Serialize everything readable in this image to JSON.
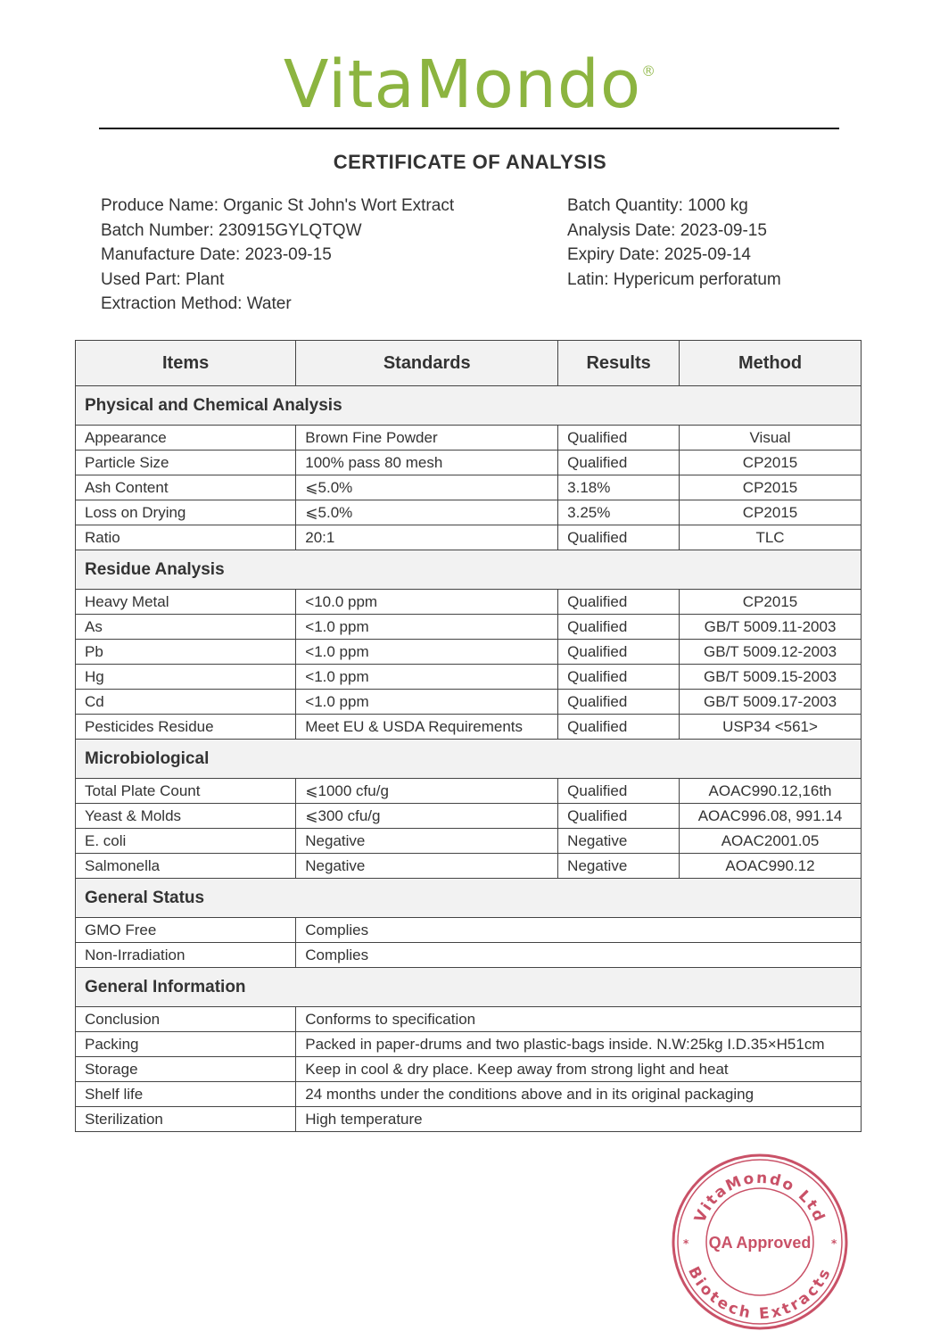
{
  "brand": {
    "name": "VitaMondo",
    "mark": "®",
    "color": "#8cb440"
  },
  "title": "CERTIFICATE OF ANALYSIS",
  "info_left": [
    "Produce Name: Organic St John's Wort Extract",
    "Batch Number: 230915GYLQTQW",
    "Manufacture Date: 2023-09-15",
    "Used Part: Plant",
    "Extraction Method: Water"
  ],
  "info_right": [
    "Batch Quantity: 1000 kg",
    "Analysis Date: 2023-09-15",
    "Expiry Date: 2025-09-14",
    "Latin: Hypericum perforatum"
  ],
  "table": {
    "headers": [
      "Items",
      "Standards",
      "Results",
      "Method"
    ],
    "sections": [
      {
        "title": "Physical and Chemical Analysis",
        "rows": [
          [
            "Appearance",
            "Brown Fine Powder",
            "Qualified",
            "Visual"
          ],
          [
            "Particle Size",
            "100% pass 80 mesh",
            "Qualified",
            "CP2015"
          ],
          [
            "Ash Content",
            "⩽5.0%",
            "3.18%",
            "CP2015"
          ],
          [
            "Loss on Drying",
            "⩽5.0%",
            "3.25%",
            "CP2015"
          ],
          [
            "Ratio",
            "20:1",
            "Qualified",
            "TLC"
          ]
        ]
      },
      {
        "title": "Residue Analysis",
        "rows": [
          [
            "Heavy Metal",
            "<10.0 ppm",
            "Qualified",
            "CP2015"
          ],
          [
            "As",
            "<1.0 ppm",
            "Qualified",
            "GB/T 5009.11-2003"
          ],
          [
            "Pb",
            "<1.0 ppm",
            "Qualified",
            "GB/T 5009.12-2003"
          ],
          [
            "Hg",
            "<1.0 ppm",
            "Qualified",
            "GB/T 5009.15-2003"
          ],
          [
            "Cd",
            "<1.0 ppm",
            "Qualified",
            "GB/T 5009.17-2003"
          ],
          [
            "Pesticides Residue",
            "Meet EU & USDA Requirements",
            "Qualified",
            "USP34 <561>"
          ]
        ]
      },
      {
        "title": "Microbiological",
        "rows": [
          [
            "Total Plate Count",
            "⩽1000 cfu/g",
            "Qualified",
            "AOAC990.12,16th"
          ],
          [
            "Yeast & Molds",
            "⩽300 cfu/g",
            "Qualified",
            "AOAC996.08, 991.14"
          ],
          [
            "E. coli",
            "Negative",
            "Negative",
            "AOAC2001.05"
          ],
          [
            "Salmonella",
            "Negative",
            "Negative",
            "AOAC990.12"
          ]
        ]
      },
      {
        "title": "General Status",
        "rows": [
          [
            "GMO Free",
            "Complies"
          ],
          [
            "Non-Irradiation",
            "Complies"
          ]
        ]
      },
      {
        "title": "General Information",
        "rows": [
          [
            "Conclusion",
            "Conforms to specification"
          ],
          [
            "Packing",
            "Packed in paper-drums and two plastic-bags inside. N.W:25kg  I.D.35×H51cm"
          ],
          [
            "Storage",
            "Keep in cool & dry place. Keep away from strong light and heat"
          ],
          [
            "Shelf life",
            "24 months under the conditions above and in its original packaging"
          ],
          [
            "Sterilization",
            "High temperature"
          ]
        ]
      }
    ]
  },
  "stamp": {
    "top_text": "VitaMondo Ltd",
    "bottom_text": "Biotech Extracts",
    "center_text": "QA Approved",
    "color": "#c0334d"
  }
}
